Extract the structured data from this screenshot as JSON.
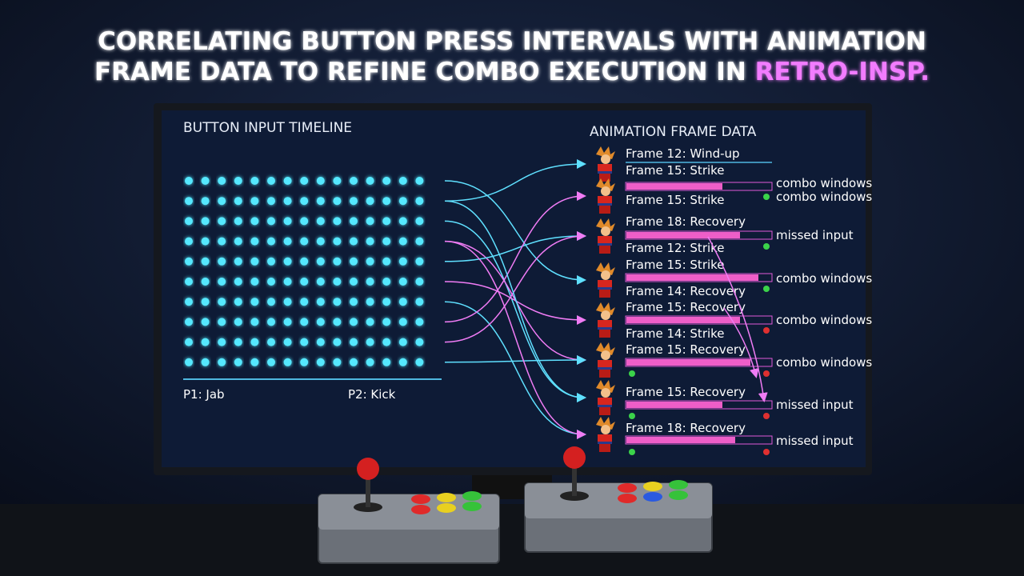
{
  "header": {
    "title_lines": [
      "CORRELATING BUTTON PRESS INTERVALS WITH ANIMATION",
      "FRAME DATA TO REFINE COMBO EXECUTION IN"
    ],
    "highlight": "RETRO-INSP."
  },
  "left_panel": {
    "heading": "BUTTON INPUT TIMELINE",
    "labels": [
      "P1: Jab",
      "P2: Kick"
    ]
  },
  "right_panel": {
    "heading": "ANIMATION FRAME DATA",
    "frame_labels": [
      "Frame 12: Wind-up",
      "Frame 15: Strike",
      "Frame 15: Strike",
      "Frame 18: Recovery",
      "Frame 12: Strike",
      "Frame 15: Strike",
      "Frame 14: Recovery",
      "Frame 15: Recovery",
      "Frame 14: Strike",
      "Frame 15: Recovery",
      "Frame 15: Recovery",
      "Frame 18: Recovery"
    ],
    "notes": [
      "combo windows",
      "combo windows",
      "missed input",
      "combo windows",
      "combo windows",
      "combo windows",
      "missed input",
      "missed input"
    ]
  }
}
